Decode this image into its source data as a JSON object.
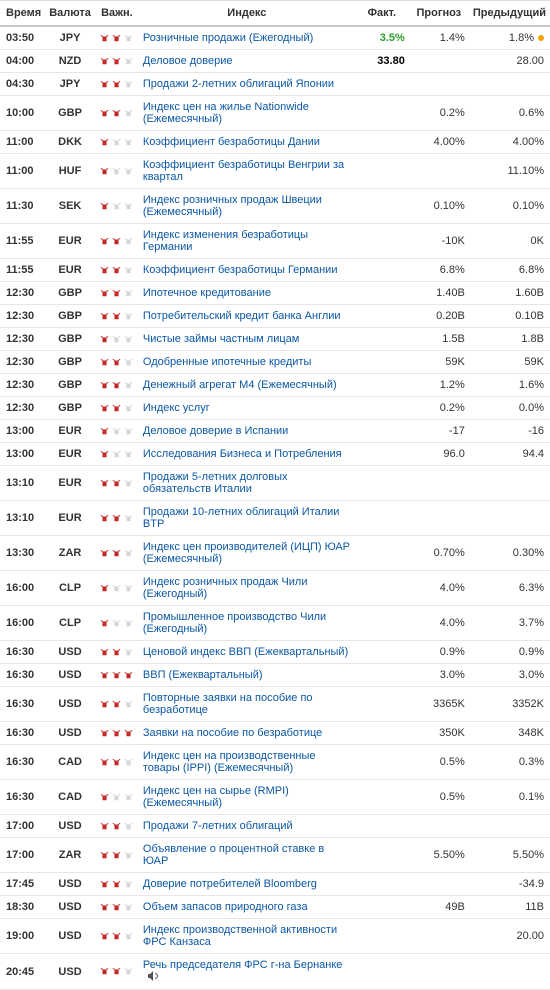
{
  "headers": {
    "time": "Время",
    "currency": "Валюта",
    "importance": "Важн.",
    "index": "Индекс",
    "actual": "Факт.",
    "forecast": "Прогноз",
    "previous": "Предыдущий"
  },
  "rows": [
    {
      "time": "03:50",
      "cur": "JPY",
      "imp": 2,
      "idx": "Розничные продажи (Ежегодный)",
      "fact": "3.5%",
      "fact_color": "green",
      "fore": "1.4%",
      "prev": "1.8%",
      "dot": true
    },
    {
      "time": "04:00",
      "cur": "NZD",
      "imp": 2,
      "idx": "Деловое доверие",
      "fact": "33.80",
      "fore": "",
      "prev": "28.00"
    },
    {
      "time": "04:30",
      "cur": "JPY",
      "imp": 2,
      "idx": "Продажи 2-летних облигаций Японии",
      "fact": "",
      "fore": "",
      "prev": ""
    },
    {
      "time": "10:00",
      "cur": "GBP",
      "imp": 2,
      "idx": "Индекс цен на жилье Nationwide (Ежемесячный)",
      "fact": "",
      "fore": "0.2%",
      "prev": "0.6%"
    },
    {
      "time": "11:00",
      "cur": "DKK",
      "imp": 1,
      "idx": "Коэффициент безработицы Дании",
      "fact": "",
      "fore": "4.00%",
      "prev": "4.00%"
    },
    {
      "time": "11:00",
      "cur": "HUF",
      "imp": 1,
      "idx": "Коэффициент безработицы Венгрии за квартал",
      "fact": "",
      "fore": "",
      "prev": "11.10%"
    },
    {
      "time": "11:30",
      "cur": "SEK",
      "imp": 1,
      "idx": "Индекс розничных продаж Швеции (Ежемесячный)",
      "fact": "",
      "fore": "0.10%",
      "prev": "0.10%"
    },
    {
      "time": "11:55",
      "cur": "EUR",
      "imp": 2,
      "idx": "Индекс изменения безработицы Германии",
      "fact": "",
      "fore": "-10K",
      "prev": "0K"
    },
    {
      "time": "11:55",
      "cur": "EUR",
      "imp": 2,
      "idx": "Коэффициент безработицы Германии",
      "fact": "",
      "fore": "6.8%",
      "prev": "6.8%"
    },
    {
      "time": "12:30",
      "cur": "GBP",
      "imp": 2,
      "idx": "Ипотечное кредитование",
      "fact": "",
      "fore": "1.40B",
      "prev": "1.60B"
    },
    {
      "time": "12:30",
      "cur": "GBP",
      "imp": 2,
      "idx": "Потребительский кредит банка Англии",
      "fact": "",
      "fore": "0.20B",
      "prev": "0.10B"
    },
    {
      "time": "12:30",
      "cur": "GBP",
      "imp": 1,
      "idx": "Чистые займы частным лицам",
      "fact": "",
      "fore": "1.5B",
      "prev": "1.8B"
    },
    {
      "time": "12:30",
      "cur": "GBP",
      "imp": 2,
      "idx": "Одобренные ипотечные кредиты",
      "fact": "",
      "fore": "59K",
      "prev": "59K"
    },
    {
      "time": "12:30",
      "cur": "GBP",
      "imp": 2,
      "idx": "Денежный агрегат M4 (Ежемесячный)",
      "fact": "",
      "fore": "1.2%",
      "prev": "1.6%"
    },
    {
      "time": "12:30",
      "cur": "GBP",
      "imp": 2,
      "idx": "Индекс услуг",
      "fact": "",
      "fore": "0.2%",
      "prev": "0.0%"
    },
    {
      "time": "13:00",
      "cur": "EUR",
      "imp": 1,
      "idx": "Деловое доверие в Испании",
      "fact": "",
      "fore": "-17",
      "prev": "-16"
    },
    {
      "time": "13:00",
      "cur": "EUR",
      "imp": 1,
      "idx": "Исследования Бизнеса и Потребления",
      "fact": "",
      "fore": "96.0",
      "prev": "94.4"
    },
    {
      "time": "13:10",
      "cur": "EUR",
      "imp": 2,
      "idx": "Продажи 5-летних долговых обязательств Италии",
      "fact": "",
      "fore": "",
      "prev": ""
    },
    {
      "time": "13:10",
      "cur": "EUR",
      "imp": 2,
      "idx": "Продажи 10-летних облигаций Италии BTP",
      "fact": "",
      "fore": "",
      "prev": ""
    },
    {
      "time": "13:30",
      "cur": "ZAR",
      "imp": 2,
      "idx": "Индекс цен производителей (ИЦП) ЮАР (Ежемесячный)",
      "fact": "",
      "fore": "0.70%",
      "prev": "0.30%"
    },
    {
      "time": "16:00",
      "cur": "CLP",
      "imp": 1,
      "idx": "Индекс розничных продаж Чили (Ежегодный)",
      "fact": "",
      "fore": "4.0%",
      "prev": "6.3%"
    },
    {
      "time": "16:00",
      "cur": "CLP",
      "imp": 1,
      "idx": "Промышленное производство Чили (Ежегодный)",
      "fact": "",
      "fore": "4.0%",
      "prev": "3.7%"
    },
    {
      "time": "16:30",
      "cur": "USD",
      "imp": 2,
      "idx": "Ценовой индекс ВВП (Ежеквартальный)",
      "fact": "",
      "fore": "0.9%",
      "prev": "0.9%"
    },
    {
      "time": "16:30",
      "cur": "USD",
      "imp": 3,
      "idx": "ВВП (Ежеквартальный)",
      "fact": "",
      "fore": "3.0%",
      "prev": "3.0%"
    },
    {
      "time": "16:30",
      "cur": "USD",
      "imp": 2,
      "idx": "Повторные заявки на пособие по безработице",
      "fact": "",
      "fore": "3365K",
      "prev": "3352K"
    },
    {
      "time": "16:30",
      "cur": "USD",
      "imp": 3,
      "idx": "Заявки на пособие по безработице",
      "fact": "",
      "fore": "350K",
      "prev": "348K"
    },
    {
      "time": "16:30",
      "cur": "CAD",
      "imp": 2,
      "idx": "Индекс цен на производственные товары (IPPI) (Ежемесячный)",
      "fact": "",
      "fore": "0.5%",
      "prev": "0.3%"
    },
    {
      "time": "16:30",
      "cur": "CAD",
      "imp": 1,
      "idx": "Индекс цен на сырье (RMPI) (Ежемесячный)",
      "fact": "",
      "fore": "0.5%",
      "prev": "0.1%"
    },
    {
      "time": "17:00",
      "cur": "USD",
      "imp": 2,
      "idx": "Продажи 7-летних облигаций",
      "fact": "",
      "fore": "",
      "prev": ""
    },
    {
      "time": "17:00",
      "cur": "ZAR",
      "imp": 2,
      "idx": "Объявление о процентной ставке в ЮАР",
      "fact": "",
      "fore": "5.50%",
      "prev": "5.50%"
    },
    {
      "time": "17:45",
      "cur": "USD",
      "imp": 2,
      "idx": "Доверие потребителей Bloomberg",
      "fact": "",
      "fore": "",
      "prev": "-34.9"
    },
    {
      "time": "18:30",
      "cur": "USD",
      "imp": 2,
      "idx": "Объем запасов природного газа",
      "fact": "",
      "fore": "49B",
      "prev": "11B"
    },
    {
      "time": "19:00",
      "cur": "USD",
      "imp": 2,
      "idx": "Индекс производственной активности ФРС Канзаса",
      "fact": "",
      "fore": "",
      "prev": "20.00"
    },
    {
      "time": "20:45",
      "cur": "USD",
      "imp": 2,
      "idx": "Речь председателя ФРС г-на Бернанке",
      "fact": "",
      "fore": "",
      "prev": "",
      "speaker": true
    }
  ]
}
